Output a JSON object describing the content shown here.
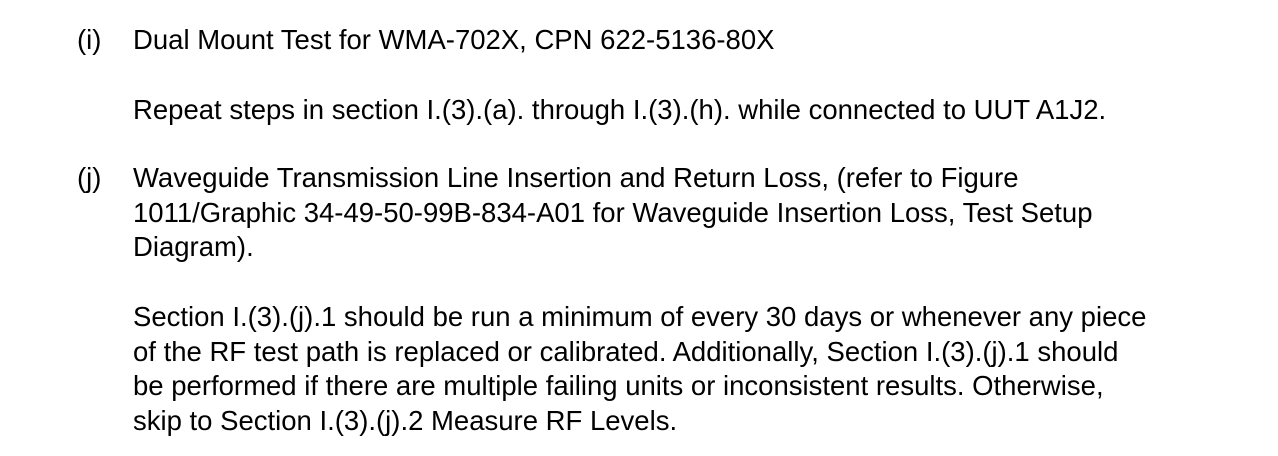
{
  "section_i": {
    "label": "(i)",
    "title": "Dual Mount Test for WMA-702X, CPN 622-5136-80X",
    "body": "Repeat steps in section I.(3).(a). through I.(3).(h). while connected to UUT A1J2."
  },
  "section_j": {
    "label": "(j)",
    "title_lines": [
      "Waveguide Transmission Line Insertion and Return Loss, (refer to Figure",
      "1011/Graphic 34-49-50-99B-834-A01 for Waveguide Insertion Loss, Test Setup",
      "Diagram)."
    ],
    "body_lines": [
      "Section I.(3).(j).1 should be run a minimum of every 30 days or whenever any piece",
      "of the RF test path is replaced or calibrated.  Additionally, Section I.(3).(j).1 should",
      "be performed if there are multiple failing units or inconsistent results. Otherwise,",
      "skip to Section I.(3).(j).2 Measure RF Levels."
    ]
  }
}
